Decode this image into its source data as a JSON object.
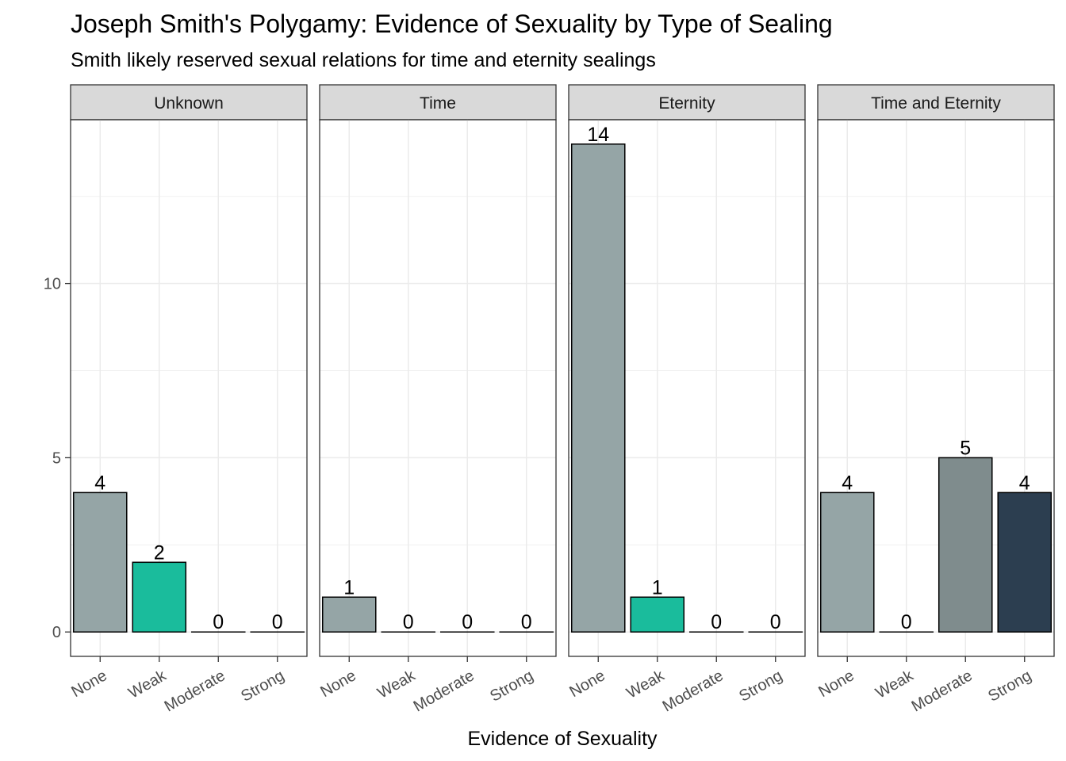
{
  "chart_data": {
    "type": "bar",
    "title": "Joseph Smith's Polygamy: Evidence of Sexuality by Type of Sealing",
    "subtitle": "Smith likely reserved sexual relations for time and eternity sealings",
    "xlabel": "Evidence of Sexuality",
    "ylabel": "",
    "categories": [
      "None",
      "Weak",
      "Moderate",
      "Strong"
    ],
    "colors": {
      "None": "#95a5a6",
      "Weak": "#1abc9c",
      "Moderate": "#7f8c8d",
      "Strong": "#2c3e50"
    },
    "ylim": [
      -0.7,
      14.7
    ],
    "yticks": [
      0,
      5,
      10
    ],
    "grid": true,
    "panels": [
      {
        "name": "Unknown",
        "values": [
          4,
          2,
          0,
          0
        ]
      },
      {
        "name": "Time",
        "values": [
          1,
          0,
          0,
          0
        ]
      },
      {
        "name": "Eternity",
        "values": [
          14,
          1,
          0,
          0
        ]
      },
      {
        "name": "Time and Eternity",
        "values": [
          4,
          0,
          5,
          4
        ]
      }
    ]
  }
}
